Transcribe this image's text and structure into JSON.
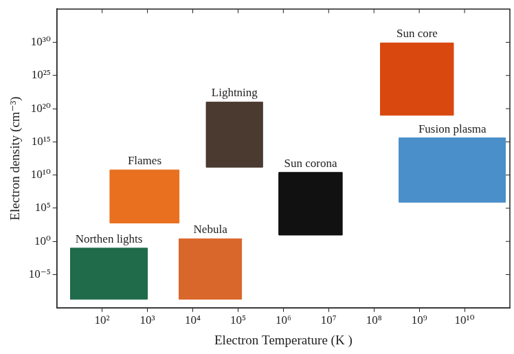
{
  "chart_data": {
    "type": "region",
    "xlabel": "Electron Temperature (K )",
    "ylabel": "Electron density (cm⁻³)",
    "log": true,
    "grid": false,
    "xlim": [
      10,
      100000000000.0
    ],
    "ylim": [
      1e-10,
      1e+35
    ],
    "xticks": [
      {
        "value": 100,
        "label": "10²"
      },
      {
        "value": 1000,
        "label": "10³"
      },
      {
        "value": 10000,
        "label": "10⁴"
      },
      {
        "value": 100000,
        "label": "10⁵"
      },
      {
        "value": 1000000,
        "label": "10⁶"
      },
      {
        "value": 10000000,
        "label": "10⁷"
      },
      {
        "value": 100000000,
        "label": "10⁸"
      },
      {
        "value": 1000000000,
        "label": "10⁹"
      },
      {
        "value": 10000000000,
        "label": "10¹⁰"
      }
    ],
    "yticks": [
      {
        "value": 1e-05,
        "label": "10⁻⁵"
      },
      {
        "value": 1,
        "label": "10⁰"
      },
      {
        "value": 100000.0,
        "label": "10⁵"
      },
      {
        "value": 10000000000.0,
        "label": "10¹⁰"
      },
      {
        "value": 1000000000000000.0,
        "label": "10¹⁵"
      },
      {
        "value": 1e+20,
        "label": "10²⁰"
      },
      {
        "value": 1e+25,
        "label": "10²⁵"
      },
      {
        "value": 1e+30,
        "label": "10³⁰"
      }
    ],
    "series": [
      {
        "name": "Northen lights",
        "x": [
          20,
          1000
        ],
        "y": [
          2e-09,
          0.1
        ],
        "color": "#1f6b4a"
      },
      {
        "name": "Flames",
        "x": [
          150,
          5000
        ],
        "y": [
          600,
          60000000000.0
        ],
        "color": "#e8701f"
      },
      {
        "name": "Lightning",
        "x": [
          20000,
          350000
        ],
        "y": [
          150000000000.0,
          1e+21
        ],
        "color": "#4a3a30"
      },
      {
        "name": "Nebula",
        "x": [
          5000,
          120000
        ],
        "y": [
          2e-09,
          2.5
        ],
        "color": "#d9662a"
      },
      {
        "name": "Sun corona",
        "x": [
          800000,
          20000000
        ],
        "y": [
          9,
          25000000000.0
        ],
        "color": "#111111"
      },
      {
        "name": "Sun core",
        "x": [
          140000000,
          5700000000
        ],
        "y": [
          1e+19,
          8e+29
        ],
        "color": "#d9480f"
      },
      {
        "name": "Fusion plasma",
        "x": [
          360000000,
          80000000000
        ],
        "y": [
          800000,
          4000000000000000.0
        ],
        "color": "#4a8fc9"
      }
    ]
  }
}
